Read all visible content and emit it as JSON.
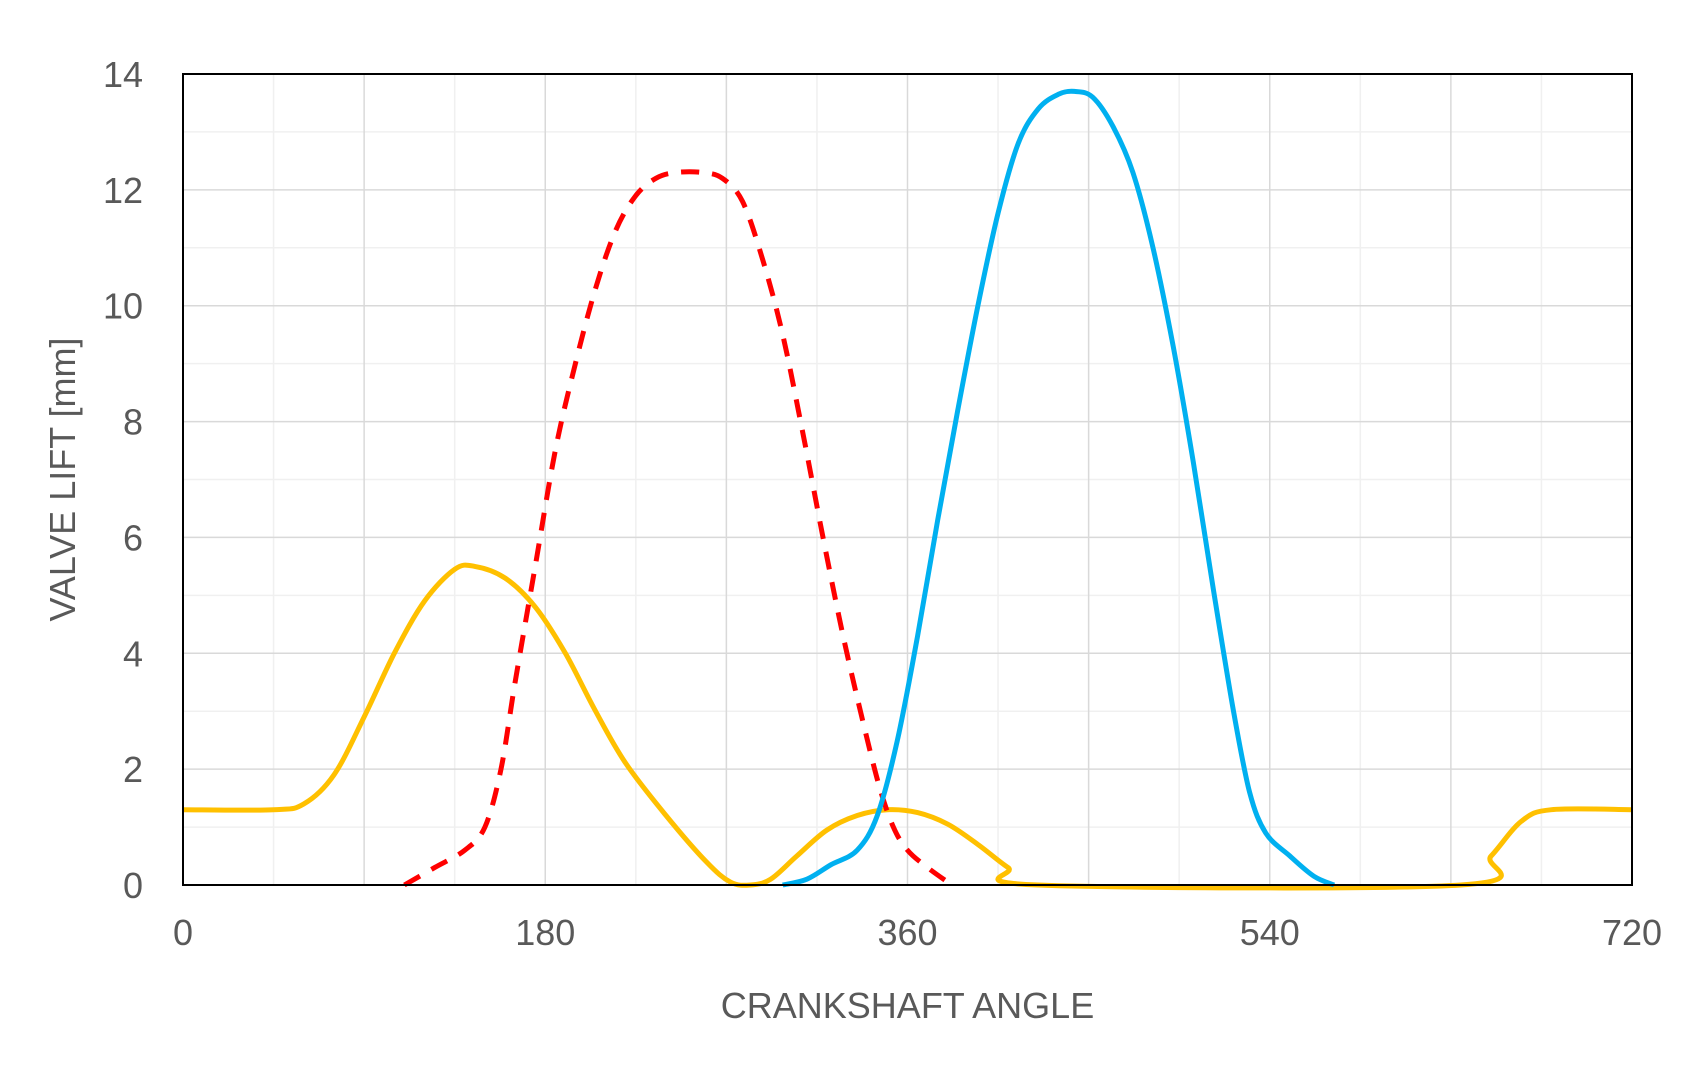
{
  "chart_data": {
    "type": "line",
    "title": "",
    "xlabel": "CRANKSHAFT ANGLE",
    "ylabel": "VALVE LIFT  [mm]",
    "xlim": [
      0,
      720
    ],
    "ylim": [
      0,
      14
    ],
    "xticks": [
      0,
      180,
      360,
      540,
      720
    ],
    "yticks": [
      0,
      2,
      4,
      6,
      8,
      10,
      12,
      14
    ],
    "xtick_labels": [
      "0",
      "180",
      "360",
      "540",
      "720"
    ],
    "ytick_labels": [
      "0",
      "2",
      "4",
      "6",
      "8",
      "10",
      "12",
      "14"
    ],
    "grid": true,
    "legend": "none",
    "series": [
      {
        "name": "yellow",
        "color": "#FFC000",
        "style": "solid",
        "points": [
          [
            0,
            1.3
          ],
          [
            45,
            1.3
          ],
          [
            60,
            1.4
          ],
          [
            75,
            1.9
          ],
          [
            90,
            2.9
          ],
          [
            105,
            4.0
          ],
          [
            120,
            4.9
          ],
          [
            135,
            5.45
          ],
          [
            145,
            5.5
          ],
          [
            160,
            5.3
          ],
          [
            175,
            4.8
          ],
          [
            190,
            4.0
          ],
          [
            205,
            3.0
          ],
          [
            220,
            2.1
          ],
          [
            240,
            1.2
          ],
          [
            260,
            0.4
          ],
          [
            272,
            0.05
          ],
          [
            282,
            0.0
          ],
          [
            292,
            0.1
          ],
          [
            305,
            0.5
          ],
          [
            320,
            0.95
          ],
          [
            335,
            1.2
          ],
          [
            350,
            1.3
          ],
          [
            365,
            1.25
          ],
          [
            380,
            1.05
          ],
          [
            395,
            0.7
          ],
          [
            410,
            0.3
          ],
          [
            425,
            0.0
          ],
          [
            635,
            0.0
          ],
          [
            650,
            0.5
          ],
          [
            665,
            1.1
          ],
          [
            680,
            1.3
          ],
          [
            720,
            1.3
          ]
        ]
      },
      {
        "name": "red",
        "color": "#FF0000",
        "style": "dashed",
        "points": [
          [
            110,
            0.0
          ],
          [
            125,
            0.3
          ],
          [
            140,
            0.6
          ],
          [
            150,
            1.0
          ],
          [
            158,
            2.0
          ],
          [
            165,
            3.5
          ],
          [
            175,
            5.5
          ],
          [
            185,
            7.5
          ],
          [
            195,
            9.0
          ],
          [
            205,
            10.3
          ],
          [
            215,
            11.3
          ],
          [
            225,
            11.9
          ],
          [
            235,
            12.2
          ],
          [
            245,
            12.3
          ],
          [
            258,
            12.3
          ],
          [
            268,
            12.2
          ],
          [
            278,
            11.8
          ],
          [
            288,
            10.8
          ],
          [
            298,
            9.5
          ],
          [
            308,
            7.8
          ],
          [
            318,
            6.0
          ],
          [
            328,
            4.3
          ],
          [
            338,
            2.8
          ],
          [
            346,
            1.7
          ],
          [
            353,
            1.0
          ],
          [
            360,
            0.6
          ],
          [
            370,
            0.3
          ],
          [
            382,
            0.0
          ]
        ]
      },
      {
        "name": "blue",
        "color": "#00B0F0",
        "style": "solid",
        "points": [
          [
            298,
            0.0
          ],
          [
            310,
            0.1
          ],
          [
            322,
            0.35
          ],
          [
            335,
            0.6
          ],
          [
            345,
            1.2
          ],
          [
            355,
            2.5
          ],
          [
            365,
            4.3
          ],
          [
            375,
            6.3
          ],
          [
            385,
            8.2
          ],
          [
            395,
            10.0
          ],
          [
            405,
            11.6
          ],
          [
            415,
            12.8
          ],
          [
            425,
            13.4
          ],
          [
            435,
            13.65
          ],
          [
            443,
            13.7
          ],
          [
            452,
            13.6
          ],
          [
            462,
            13.1
          ],
          [
            472,
            12.3
          ],
          [
            482,
            11.0
          ],
          [
            492,
            9.3
          ],
          [
            502,
            7.3
          ],
          [
            512,
            5.1
          ],
          [
            522,
            3.0
          ],
          [
            530,
            1.6
          ],
          [
            538,
            0.9
          ],
          [
            550,
            0.5
          ],
          [
            562,
            0.15
          ],
          [
            572,
            0.0
          ]
        ]
      }
    ]
  }
}
